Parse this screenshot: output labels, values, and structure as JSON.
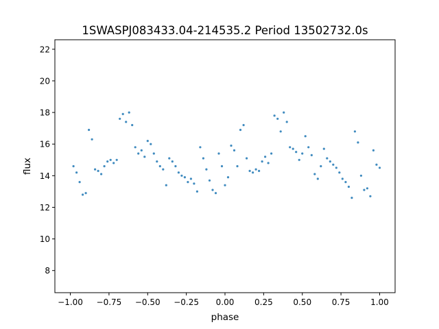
{
  "chart_data": {
    "type": "scatter",
    "title": "1SWASPJ083433.04-214535.2 Period 13502732.0s",
    "xlabel": "phase",
    "ylabel": "flux",
    "xlim": [
      -1.1,
      1.1
    ],
    "ylim": [
      6.6,
      22.6
    ],
    "xticks": [
      -1.0,
      -0.75,
      -0.5,
      -0.25,
      0.0,
      0.25,
      0.5,
      0.75,
      1.0
    ],
    "xtick_labels": [
      "−1.00",
      "−0.75",
      "−0.50",
      "−0.25",
      "0.00",
      "0.25",
      "0.50",
      "0.75",
      "1.00"
    ],
    "yticks": [
      8,
      10,
      12,
      14,
      16,
      18,
      20,
      22
    ],
    "ytick_labels": [
      "8",
      "10",
      "12",
      "14",
      "16",
      "18",
      "20",
      "22"
    ],
    "grid": false,
    "marker_color": "#1f77b4",
    "series": [
      {
        "x": [
          -0.98,
          -0.96,
          -0.94,
          -0.92,
          -0.9,
          -0.88,
          -0.86,
          -0.84,
          -0.82,
          -0.8,
          -0.78,
          -0.76,
          -0.74,
          -0.72,
          -0.7,
          -0.68,
          -0.66,
          -0.64,
          -0.62,
          -0.6,
          -0.58,
          -0.56,
          -0.54,
          -0.52,
          -0.5,
          -0.48,
          -0.46,
          -0.44,
          -0.42,
          -0.4,
          -0.38,
          -0.36,
          -0.34,
          -0.32,
          -0.3,
          -0.28,
          -0.26,
          -0.24,
          -0.22,
          -0.2,
          -0.18,
          -0.16,
          -0.14,
          -0.12,
          -0.1,
          -0.08,
          -0.06,
          -0.04,
          -0.02,
          0.0,
          0.02,
          0.04,
          0.06,
          0.08,
          0.1,
          0.12,
          0.14,
          0.16,
          0.18,
          0.2,
          0.22,
          0.24,
          0.26,
          0.28,
          0.3,
          0.32,
          0.34,
          0.36,
          0.38,
          0.4,
          0.42,
          0.44,
          0.46,
          0.48,
          0.5,
          0.52,
          0.54,
          0.56,
          0.58,
          0.6,
          0.62,
          0.64,
          0.66,
          0.68,
          0.7,
          0.72,
          0.74,
          0.76,
          0.78,
          0.8,
          0.82,
          0.84,
          0.86,
          0.88,
          0.9,
          0.92,
          0.94,
          0.96,
          0.98,
          1.0
        ],
        "y": [
          14.6,
          14.2,
          13.6,
          12.8,
          12.9,
          16.9,
          16.3,
          14.4,
          14.3,
          14.1,
          14.6,
          14.9,
          15.0,
          14.8,
          15.0,
          17.6,
          17.9,
          17.4,
          18.0,
          17.2,
          15.8,
          15.4,
          15.6,
          15.2,
          16.2,
          16.0,
          15.4,
          14.9,
          14.6,
          14.4,
          13.4,
          15.1,
          14.9,
          14.6,
          14.2,
          14.0,
          13.9,
          13.6,
          13.8,
          13.5,
          13.0,
          15.8,
          15.1,
          14.4,
          13.7,
          13.1,
          12.9,
          15.4,
          14.6,
          13.4,
          13.9,
          15.9,
          15.6,
          14.6,
          16.9,
          17.2,
          15.1,
          14.3,
          14.2,
          14.4,
          14.3,
          14.9,
          15.2,
          14.8,
          15.4,
          17.8,
          17.6,
          16.8,
          18.0,
          17.4,
          15.8,
          15.7,
          15.5,
          15.0,
          15.4,
          16.5,
          15.8,
          15.3,
          14.1,
          13.8,
          14.6,
          15.7,
          15.1,
          14.9,
          14.7,
          14.5,
          14.2,
          13.8,
          13.6,
          13.3,
          12.6,
          16.8,
          16.1,
          14.0,
          13.1,
          13.2,
          12.7,
          15.6,
          14.7,
          14.5
        ]
      }
    ]
  }
}
